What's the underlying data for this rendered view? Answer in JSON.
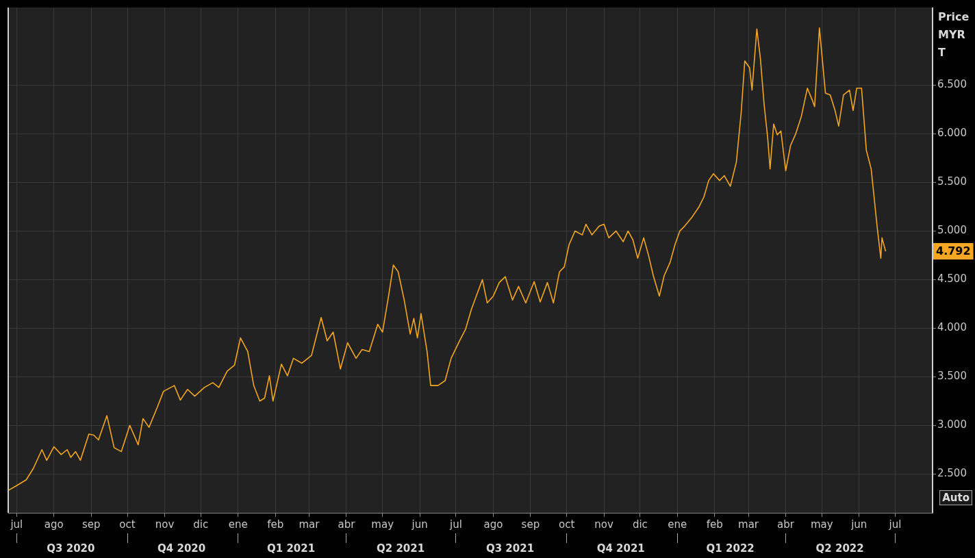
{
  "chart_data": {
    "type": "line",
    "ylabel": "Price MYR T",
    "x": [
      "2020-06-24",
      "2020-07-01",
      "2020-07-09",
      "2020-07-15",
      "2020-07-22",
      "2020-07-26",
      "2020-08-01",
      "2020-08-07",
      "2020-08-12",
      "2020-08-15",
      "2020-08-19",
      "2020-08-23",
      "2020-08-30",
      "2020-09-03",
      "2020-09-07",
      "2020-09-14",
      "2020-09-20",
      "2020-09-26",
      "2020-10-03",
      "2020-10-10",
      "2020-10-14",
      "2020-10-19",
      "2020-10-26",
      "2020-10-31",
      "2020-11-09",
      "2020-11-14",
      "2020-11-20",
      "2020-11-26",
      "2020-12-04",
      "2020-12-11",
      "2020-12-16",
      "2020-12-23",
      "2020-12-29",
      "2021-01-03",
      "2021-01-09",
      "2021-01-14",
      "2021-01-19",
      "2021-01-23",
      "2021-01-27",
      "2021-01-30",
      "2021-02-06",
      "2021-02-11",
      "2021-02-16",
      "2021-02-23",
      "2021-03-03",
      "2021-03-11",
      "2021-03-16",
      "2021-03-21",
      "2021-03-27",
      "2021-04-02",
      "2021-04-09",
      "2021-04-14",
      "2021-04-20",
      "2021-04-27",
      "2021-05-01",
      "2021-05-06",
      "2021-05-10",
      "2021-05-14",
      "2021-05-19",
      "2021-05-24",
      "2021-05-27",
      "2021-05-30",
      "2021-06-02",
      "2021-06-07",
      "2021-06-10",
      "2021-06-16",
      "2021-06-22",
      "2021-06-27",
      "2021-07-04",
      "2021-07-09",
      "2021-07-14",
      "2021-07-20",
      "2021-07-23",
      "2021-07-27",
      "2021-08-01",
      "2021-08-06",
      "2021-08-11",
      "2021-08-17",
      "2021-08-22",
      "2021-08-28",
      "2021-09-04",
      "2021-09-09",
      "2021-09-15",
      "2021-09-20",
      "2021-09-25",
      "2021-09-29",
      "2021-10-03",
      "2021-10-08",
      "2021-10-14",
      "2021-10-17",
      "2021-10-22",
      "2021-10-28",
      "2021-11-01",
      "2021-11-05",
      "2021-11-11",
      "2021-11-17",
      "2021-11-21",
      "2021-11-25",
      "2021-11-29",
      "2021-12-04",
      "2021-12-08",
      "2021-12-12",
      "2021-12-17",
      "2021-12-21",
      "2021-12-26",
      "2021-12-30",
      "2022-01-03",
      "2022-01-07",
      "2022-01-13",
      "2022-01-19",
      "2022-01-23",
      "2022-01-27",
      "2022-01-31",
      "2022-02-05",
      "2022-02-09",
      "2022-02-14",
      "2022-02-19",
      "2022-02-23",
      "2022-02-26",
      "2022-03-02",
      "2022-03-04",
      "2022-03-08",
      "2022-03-11",
      "2022-03-14",
      "2022-03-17",
      "2022-03-19",
      "2022-03-22",
      "2022-03-25",
      "2022-03-28",
      "2022-04-01",
      "2022-04-05",
      "2022-04-09",
      "2022-04-14",
      "2022-04-19",
      "2022-04-23",
      "2022-04-25",
      "2022-04-29",
      "2022-05-04",
      "2022-05-08",
      "2022-05-12",
      "2022-05-15",
      "2022-05-19",
      "2022-05-24",
      "2022-05-27",
      "2022-05-30",
      "2022-06-03",
      "2022-06-07",
      "2022-06-11",
      "2022-06-16",
      "2022-06-19",
      "2022-06-20",
      "2022-06-23"
    ],
    "series": [
      {
        "color": "#f5a623",
        "values": [
          2330,
          2380,
          2440,
          2560,
          2750,
          2640,
          2780,
          2700,
          2750,
          2670,
          2730,
          2640,
          2910,
          2900,
          2850,
          3100,
          2770,
          2730,
          3000,
          2800,
          3070,
          2980,
          3190,
          3350,
          3410,
          3260,
          3370,
          3300,
          3390,
          3440,
          3390,
          3560,
          3620,
          3900,
          3760,
          3410,
          3250,
          3280,
          3510,
          3250,
          3630,
          3510,
          3690,
          3640,
          3720,
          4110,
          3870,
          3960,
          3580,
          3850,
          3690,
          3780,
          3760,
          4040,
          3960,
          4330,
          4650,
          4580,
          4290,
          3940,
          4100,
          3900,
          4150,
          3760,
          3410,
          3410,
          3460,
          3690,
          3870,
          3990,
          4200,
          4400,
          4500,
          4260,
          4330,
          4470,
          4530,
          4290,
          4430,
          4260,
          4480,
          4270,
          4470,
          4260,
          4580,
          4630,
          4860,
          5000,
          4960,
          5070,
          4960,
          5050,
          5070,
          4930,
          5000,
          4890,
          5000,
          4910,
          4720,
          4930,
          4750,
          4540,
          4330,
          4540,
          4680,
          4860,
          5000,
          5050,
          5140,
          5250,
          5350,
          5520,
          5590,
          5520,
          5570,
          5460,
          5710,
          6220,
          6750,
          6680,
          6450,
          7080,
          6770,
          6310,
          5960,
          5640,
          6100,
          5990,
          6030,
          5620,
          5880,
          5990,
          6180,
          6470,
          6350,
          6280,
          7090,
          6420,
          6400,
          6240,
          6080,
          6400,
          6450,
          6240,
          6470,
          6470,
          5830,
          5640,
          5040,
          4720,
          4930,
          4792
        ]
      }
    ],
    "xlim": [
      "2020-06-24",
      "2022-08-01"
    ],
    "xticks": [
      {
        "value": "2020-07-01",
        "label": "jul"
      },
      {
        "value": "2020-08-01",
        "label": "ago"
      },
      {
        "value": "2020-09-01",
        "label": "sep"
      },
      {
        "value": "2020-10-01",
        "label": "oct"
      },
      {
        "value": "2020-11-01",
        "label": "nov"
      },
      {
        "value": "2020-12-01",
        "label": "dic"
      },
      {
        "value": "2021-01-01",
        "label": "ene"
      },
      {
        "value": "2021-02-01",
        "label": "feb"
      },
      {
        "value": "2021-03-01",
        "label": "mar"
      },
      {
        "value": "2021-04-01",
        "label": "abr"
      },
      {
        "value": "2021-05-01",
        "label": "may"
      },
      {
        "value": "2021-06-01",
        "label": "jun"
      },
      {
        "value": "2021-07-01",
        "label": "jul"
      },
      {
        "value": "2021-08-01",
        "label": "ago"
      },
      {
        "value": "2021-09-01",
        "label": "sep"
      },
      {
        "value": "2021-10-01",
        "label": "oct"
      },
      {
        "value": "2021-11-01",
        "label": "nov"
      },
      {
        "value": "2021-12-01",
        "label": "dic"
      },
      {
        "value": "2022-01-01",
        "label": "ene"
      },
      {
        "value": "2022-02-01",
        "label": "feb"
      },
      {
        "value": "2022-03-01",
        "label": "mar"
      },
      {
        "value": "2022-04-01",
        "label": "abr"
      },
      {
        "value": "2022-05-01",
        "label": "may"
      },
      {
        "value": "2022-06-01",
        "label": "jun"
      },
      {
        "value": "2022-07-01",
        "label": "jul"
      }
    ],
    "x2lim": [
      "2020-06-24",
      "2022-08-01"
    ],
    "x2ticks": [
      {
        "value": "2020-07-01",
        "label": null
      },
      {
        "value": "2020-08-15",
        "label": "Q3 2020"
      },
      {
        "value": "2020-10-01",
        "label": null
      },
      {
        "value": "2020-11-15",
        "label": "Q4 2020"
      },
      {
        "value": "2021-01-01",
        "label": null
      },
      {
        "value": "2021-02-14",
        "label": "Q1 2021"
      },
      {
        "value": "2021-04-01",
        "label": null
      },
      {
        "value": "2021-05-16",
        "label": "Q2 2021"
      },
      {
        "value": "2021-07-01",
        "label": null
      },
      {
        "value": "2021-08-15",
        "label": "Q3 2021"
      },
      {
        "value": "2021-10-01",
        "label": null
      },
      {
        "value": "2021-11-15",
        "label": "Q4 2021"
      },
      {
        "value": "2022-01-01",
        "label": null
      },
      {
        "value": "2022-02-14",
        "label": "Q1 2022"
      },
      {
        "value": "2022-04-01",
        "label": null
      },
      {
        "value": "2022-05-16",
        "label": "Q2 2022"
      },
      {
        "value": "2022-07-01",
        "label": null
      }
    ],
    "ylim": [
      2100,
      7300
    ],
    "yticks": [
      {
        "value": 2500,
        "label": "2.500"
      },
      {
        "value": 3000,
        "label": "3.000"
      },
      {
        "value": 3500,
        "label": "3.500"
      },
      {
        "value": 4000,
        "label": "4.000"
      },
      {
        "value": 4500,
        "label": "4.500"
      },
      {
        "value": 5000,
        "label": "5.000"
      },
      {
        "value": 5500,
        "label": "5.500"
      },
      {
        "value": 6000,
        "label": "6.000"
      },
      {
        "value": 6500,
        "label": "6.500"
      }
    ],
    "annotations": [
      "4.792",
      "Auto"
    ],
    "grid": true,
    "legend": false,
    "marker": "none",
    "line_style": "solid"
  }
}
